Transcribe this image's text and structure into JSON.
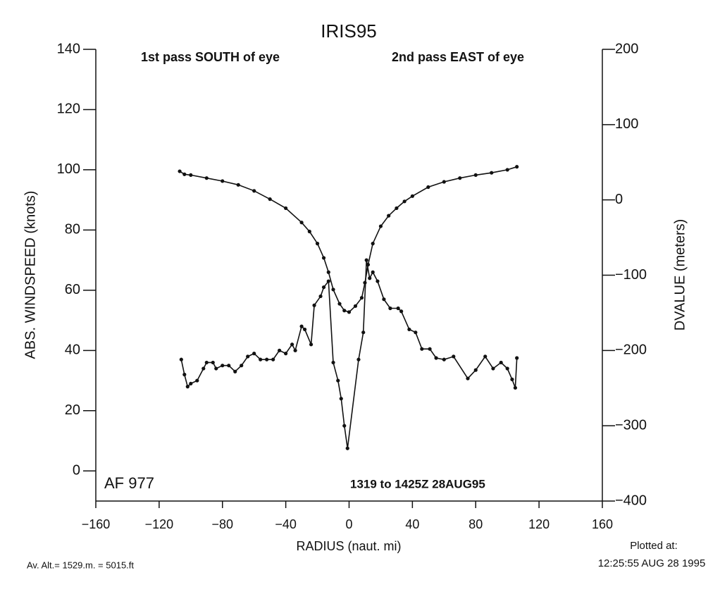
{
  "chart_data": {
    "type": "line",
    "title": "IRIS95",
    "annotations": [
      "1st pass SOUTH of eye",
      "2nd pass EAST of eye",
      "AF 977",
      "1319 to 1425Z 28AUG95"
    ],
    "xlabel": "RADIUS (naut. mi)",
    "ylabel": "ABS. WINDSPEED (knots)",
    "y2label": "DVALUE (meters)",
    "footer_left": "Av. Alt.= 1529.m. =  5015.ft",
    "footer_right": [
      "Plotted at:",
      "12:25:55 AUG 28 1995"
    ],
    "xlim": [
      -160,
      160
    ],
    "xticks": [
      {
        "value": -160,
        "label": "−160"
      },
      {
        "value": -120,
        "label": "−120"
      },
      {
        "value": -80,
        "label": "−80"
      },
      {
        "value": -40,
        "label": "−40"
      },
      0,
      40,
      80,
      120,
      160
    ],
    "ylim": [
      -10,
      140
    ],
    "yticks": [
      0,
      20,
      40,
      60,
      80,
      100,
      120,
      140
    ],
    "y2lim": [
      -400,
      200
    ],
    "y2ticks": [
      200,
      100,
      0,
      {
        "value": -100,
        "label": "−100"
      },
      {
        "value": -200,
        "label": "−200"
      },
      {
        "value": -300,
        "label": "−300"
      },
      {
        "value": -400,
        "label": "−400"
      }
    ],
    "series": [
      {
        "color": "#111111",
        "x": [
          -106,
          -104,
          -102,
          -100,
          -96,
          -92,
          -90,
          -86,
          -84,
          -80,
          -76,
          -72,
          -68,
          -64,
          -60,
          -56,
          -52,
          -48,
          -44,
          -40,
          -36,
          -34,
          -30,
          -28,
          -24,
          -22,
          -18,
          -16,
          -13,
          -10,
          -7,
          -5,
          -3,
          -1,
          6,
          9,
          11,
          13,
          15,
          18,
          22,
          26,
          31,
          33,
          38,
          42,
          46,
          51,
          55,
          60,
          66,
          75,
          80,
          86,
          91,
          96,
          100,
          103,
          105,
          106
        ],
        "values": [
          37,
          32,
          28,
          29,
          30,
          34,
          36,
          36,
          34,
          35,
          35,
          33,
          35,
          38,
          39,
          37,
          37,
          37,
          40,
          39,
          42,
          40,
          48,
          47,
          42,
          55,
          58,
          61,
          63,
          36,
          30,
          24,
          15,
          7.5,
          37,
          46,
          70,
          64,
          66,
          63,
          57,
          54,
          54,
          53,
          47,
          46,
          40.5,
          40.5,
          37.5,
          37,
          38,
          30.7,
          33.5,
          38,
          34,
          36,
          34,
          30.4,
          27.6,
          37.5
        ]
      },
      {
        "color": "#111111",
        "axis": "y2",
        "x": [
          -107,
          -104,
          -100,
          -90,
          -80,
          -70,
          -60,
          -50,
          -40,
          -30,
          -25,
          -20,
          -16,
          -13,
          -10,
          -6,
          -3,
          0,
          4,
          8,
          10,
          12,
          15,
          20,
          25,
          30,
          35,
          40,
          50,
          60,
          70,
          80,
          90,
          100,
          106
        ],
        "values": [
          38,
          34,
          33,
          29,
          25,
          20,
          12,
          1,
          -11,
          -30,
          -42,
          -58,
          -77,
          -96,
          -119,
          -138,
          -147,
          -149,
          -141,
          -130,
          -110,
          -86,
          -58,
          -35,
          -21,
          -11,
          -2,
          5,
          17,
          24,
          29,
          33,
          36,
          40,
          44
        ]
      }
    ]
  }
}
